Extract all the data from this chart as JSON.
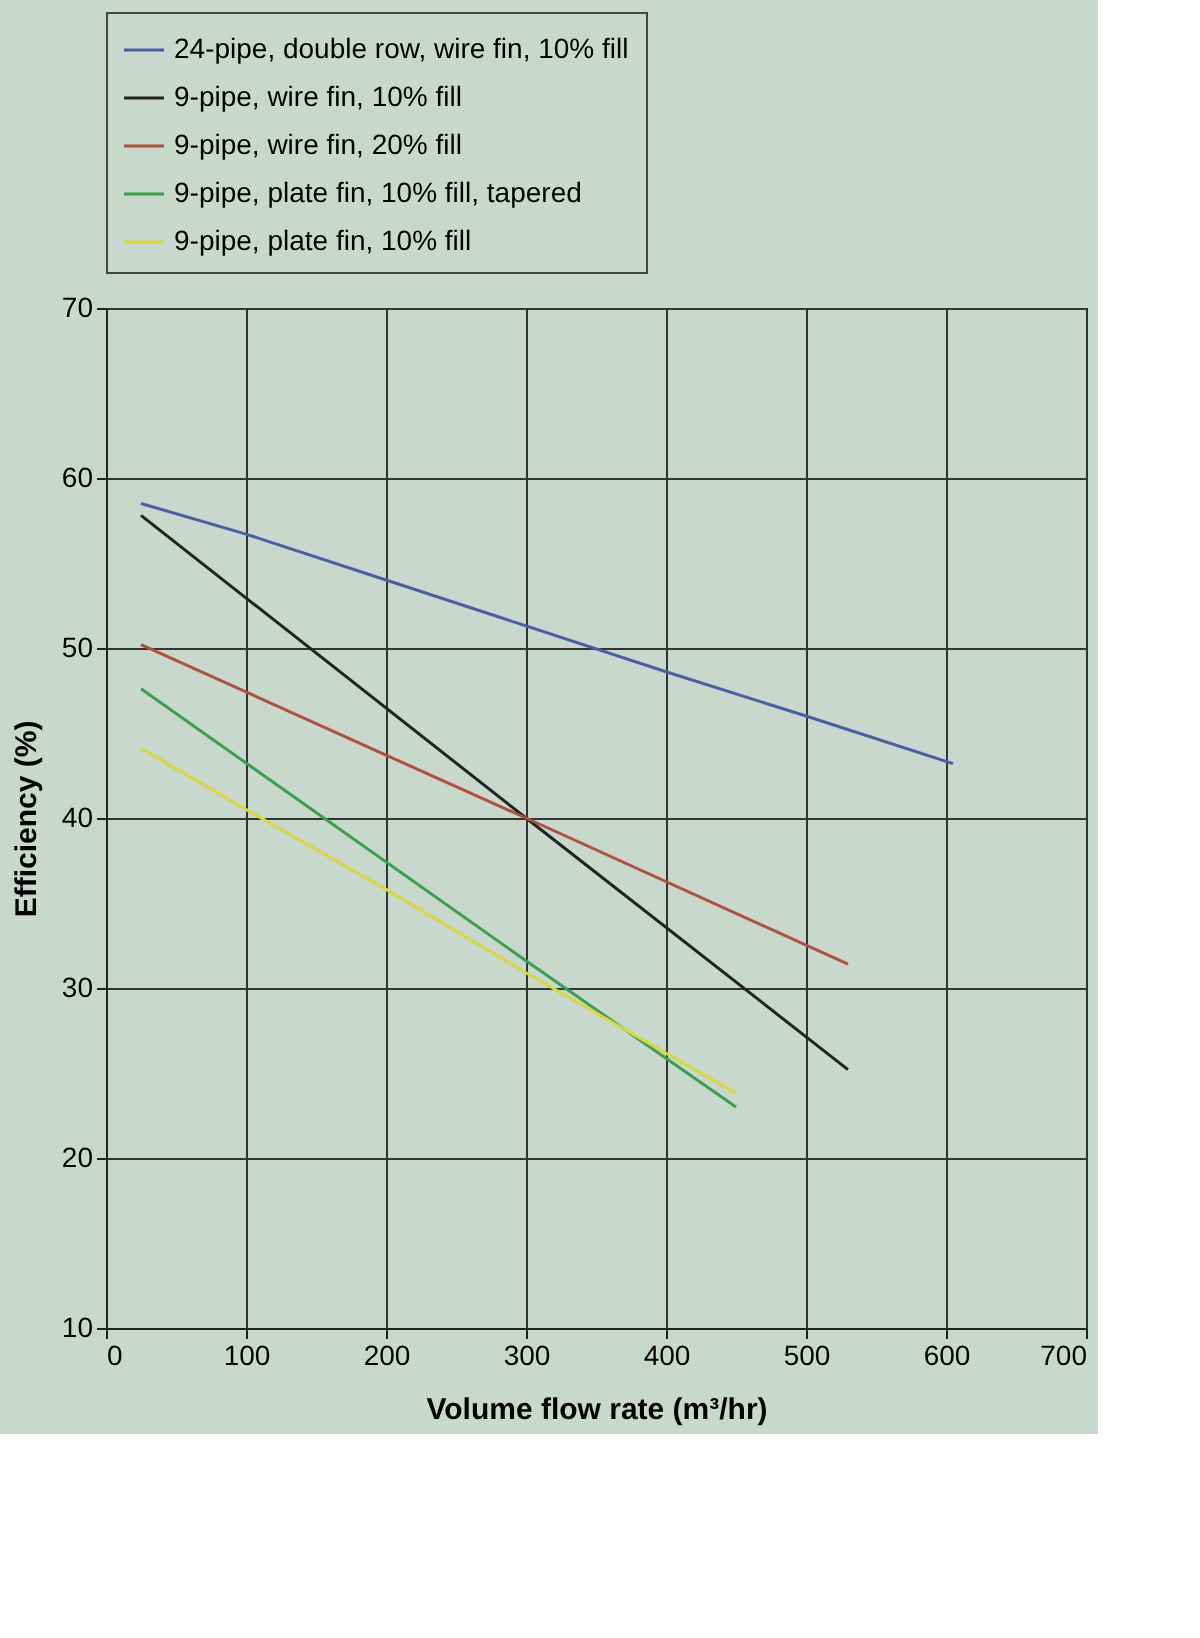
{
  "chart_data": {
    "type": "line",
    "xlabel": "Volume flow rate (m³/hr)",
    "ylabel": "Efficiency (%)",
    "xlim": [
      0,
      700
    ],
    "xticks": [
      0,
      100,
      200,
      300,
      400,
      500,
      600,
      700
    ],
    "ylim": [
      10,
      70
    ],
    "yticks": [
      10,
      20,
      30,
      40,
      50,
      60,
      70
    ],
    "grid": true,
    "legend": "top",
    "marker": "none",
    "line_style": "solid",
    "series": [
      {
        "name": "24-pipe, double row, wire fin, 10% fill",
        "color": "#4a5fa0",
        "x": [
          25,
          100,
          200,
          300,
          400,
          500,
          605
        ],
        "values": [
          58.5,
          56.7,
          54.0,
          51.3,
          48.6,
          46.0,
          43.2
        ]
      },
      {
        "name": "9-pipe, wire fin, 10% fill",
        "color": "#222222",
        "x": [
          25,
          300,
          530
        ],
        "values": [
          57.8,
          40.0,
          25.2
        ]
      },
      {
        "name": "9-pipe, wire fin, 20% fill",
        "color": "#b05040",
        "x": [
          25,
          200,
          300,
          530
        ],
        "values": [
          50.2,
          43.7,
          40.0,
          31.4
        ]
      },
      {
        "name": "9-pipe, plate fin, 10% fill, tapered",
        "color": "#3aa050",
        "x": [
          25,
          300,
          450
        ],
        "values": [
          47.6,
          31.6,
          23.0
        ]
      },
      {
        "name": "9-pipe, plate fin, 10% fill",
        "color": "#d8d840",
        "x": [
          25,
          100,
          200,
          300,
          450
        ],
        "values": [
          44.1,
          40.5,
          35.8,
          30.9,
          23.8
        ]
      }
    ]
  }
}
